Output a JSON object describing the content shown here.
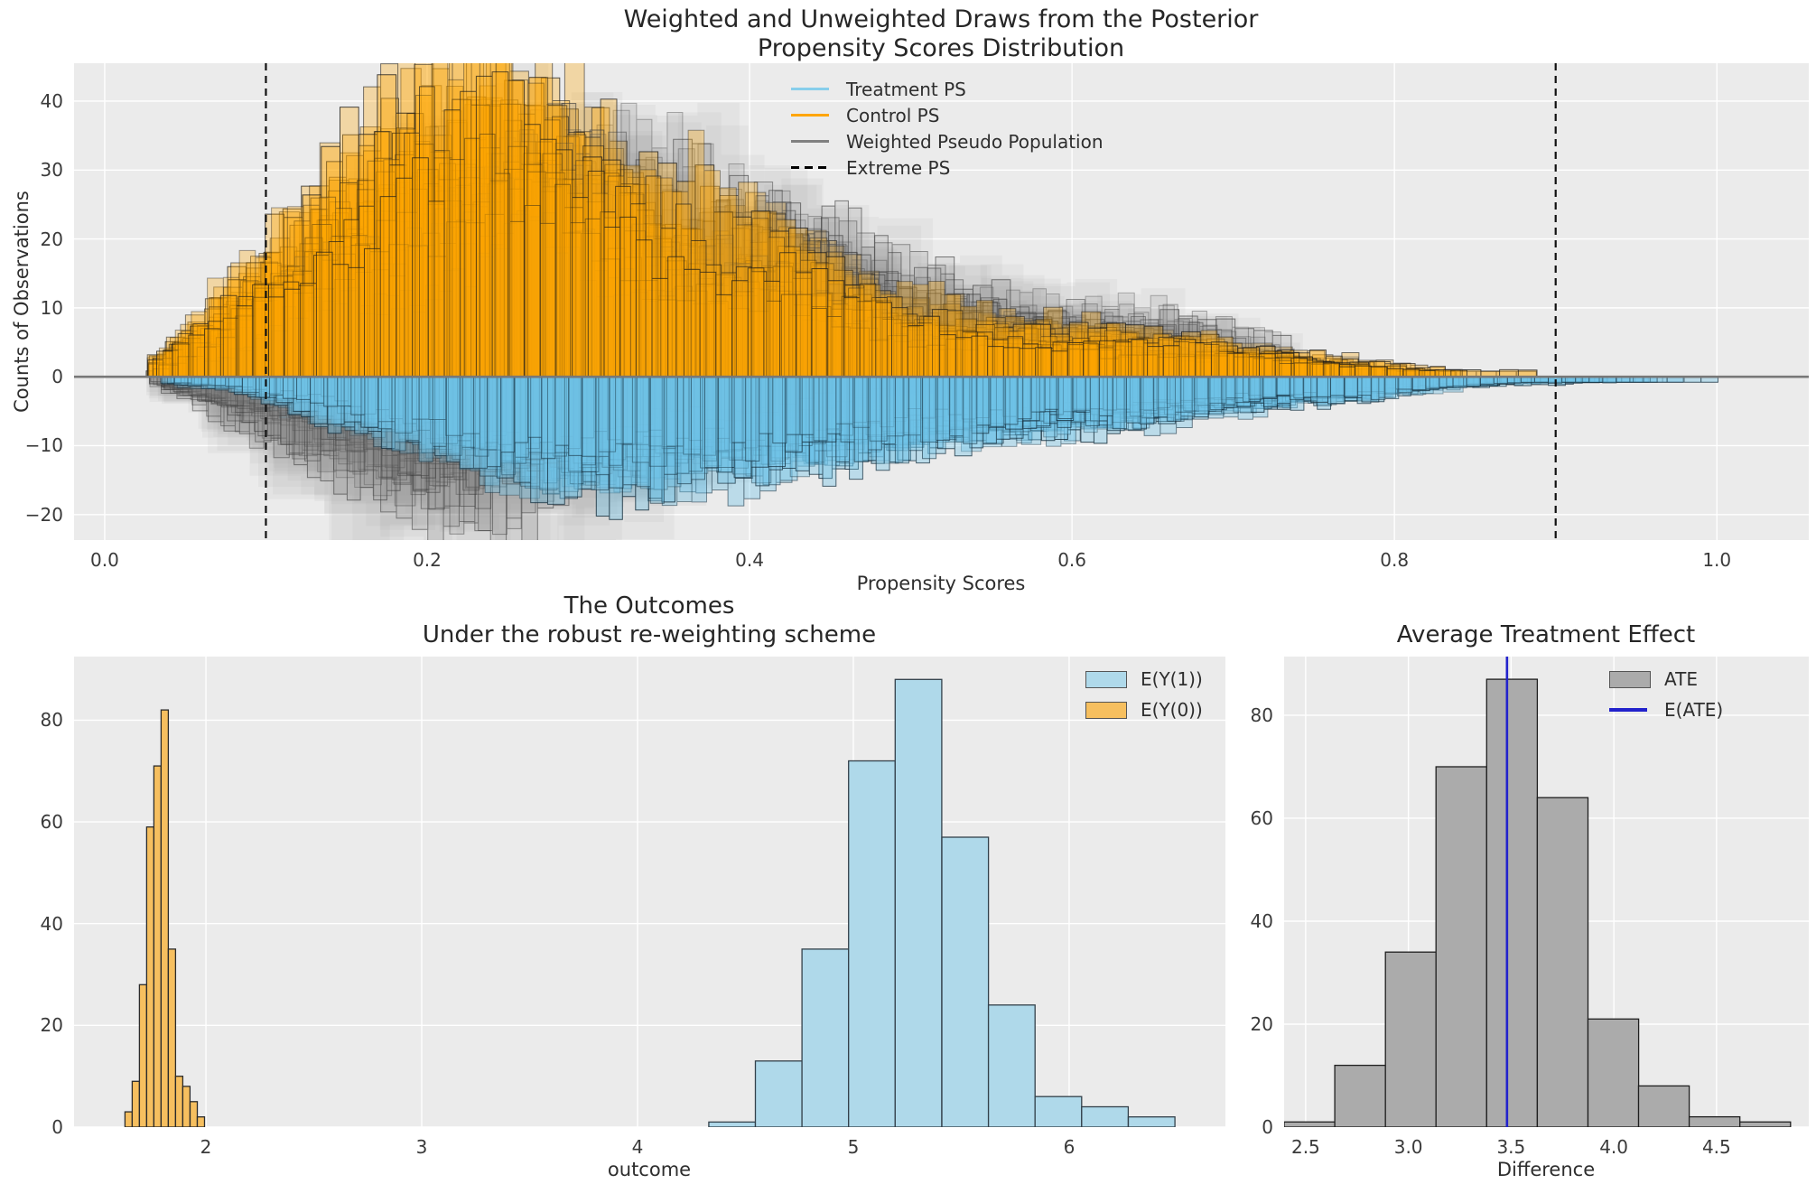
{
  "figure": {
    "background": "#ffffff",
    "axes_background": "#ebebeb",
    "grid_color": "#ffffff",
    "tick_color": "#3a3a3a",
    "title_color": "#262626"
  },
  "chart_data": [
    {
      "id": "propensity-draws",
      "type": "bar",
      "subtype": "overlaid-posterior-histogram-draws-mirrored",
      "title_line1": "Weighted and Unweighted Draws from the Posterior",
      "title_line2": "Propensity Scores Distribution",
      "xlabel": "Propensity Scores",
      "ylabel": "Counts of Observations",
      "xlim": [
        -0.019,
        1.057
      ],
      "ylim": [
        -23.7,
        45.5
      ],
      "xticks": [
        {
          "v": 0.0,
          "label": "0.0"
        },
        {
          "v": 0.2,
          "label": "0.2"
        },
        {
          "v": 0.4,
          "label": "0.4"
        },
        {
          "v": 0.6,
          "label": "0.6"
        },
        {
          "v": 0.8,
          "label": "0.8"
        },
        {
          "v": 1.0,
          "label": "1.0"
        }
      ],
      "yticks": [
        {
          "v": -20,
          "label": "−20"
        },
        {
          "v": -10,
          "label": "−10"
        },
        {
          "v": 0,
          "label": "0"
        },
        {
          "v": 10,
          "label": "10"
        },
        {
          "v": 20,
          "label": "20"
        },
        {
          "v": 30,
          "label": "30"
        },
        {
          "v": 40,
          "label": "40"
        }
      ],
      "extreme_ps_lines": [
        0.1,
        0.9
      ],
      "zero_line_color": "#787878",
      "n_draws_per_series": 20,
      "series": {
        "control": {
          "name": "Control PS",
          "color": "#FFA500",
          "side": "up",
          "x": [
            0.03,
            0.06,
            0.09,
            0.12,
            0.15,
            0.18,
            0.21,
            0.24,
            0.27,
            0.3,
            0.33,
            0.36,
            0.39,
            0.42,
            0.45,
            0.48,
            0.51,
            0.54,
            0.57,
            0.6,
            0.64,
            0.68,
            0.72,
            0.76,
            0.8,
            0.85
          ],
          "h": [
            2,
            8,
            16,
            24,
            30,
            36,
            40,
            42,
            40,
            36,
            31,
            26,
            22,
            20,
            16,
            12,
            10,
            9,
            8,
            7,
            6,
            5,
            4,
            3,
            2,
            1
          ]
        },
        "treatment": {
          "name": "Treatment PS",
          "color": "#87CEEB",
          "side": "down",
          "x": [
            0.04,
            0.08,
            0.11,
            0.14,
            0.17,
            0.2,
            0.23,
            0.26,
            0.29,
            0.32,
            0.35,
            0.38,
            0.41,
            0.44,
            0.47,
            0.5,
            0.54,
            0.58,
            0.62,
            0.66,
            0.7,
            0.74,
            0.78,
            0.82,
            0.86,
            0.9,
            0.95
          ],
          "h": [
            1,
            2,
            4,
            6,
            8,
            10,
            12,
            14,
            15,
            15,
            15,
            14,
            13,
            12,
            11,
            10,
            9,
            8,
            7,
            6,
            5,
            4,
            3,
            2,
            1.5,
            1,
            0.7
          ]
        },
        "weighted_above": {
          "name": "Weighted Pseudo Population",
          "color": "#808080",
          "side": "up",
          "x": [
            0.05,
            0.08,
            0.12,
            0.16,
            0.2,
            0.24,
            0.28,
            0.32,
            0.36,
            0.4,
            0.44,
            0.48,
            0.52,
            0.56,
            0.6,
            0.64,
            0.68,
            0.72,
            0.76
          ],
          "h": [
            2,
            6,
            14,
            20,
            26,
            30,
            31,
            30,
            28,
            24,
            20,
            16,
            13,
            11,
            10,
            9,
            8,
            6,
            3
          ]
        },
        "weighted_below": {
          "name": "Weighted Pseudo Population",
          "color": "#808080",
          "side": "down",
          "x": [
            0.03,
            0.06,
            0.09,
            0.12,
            0.15,
            0.18,
            0.21,
            0.24,
            0.27,
            0.3,
            0.33,
            0.36,
            0.39,
            0.42,
            0.45,
            0.48,
            0.53
          ],
          "h": [
            1,
            4,
            8,
            12,
            15,
            18,
            20,
            20,
            19,
            16,
            14,
            11,
            9,
            7,
            5,
            3,
            2
          ]
        }
      },
      "legend": [
        {
          "label": "Treatment PS",
          "swatch": "line",
          "color": "#87CEEB"
        },
        {
          "label": "Control PS",
          "swatch": "line",
          "color": "#FFA500"
        },
        {
          "label": "Weighted Pseudo Population",
          "swatch": "line",
          "color": "#808080"
        },
        {
          "label": "Extreme PS",
          "swatch": "dashed-line",
          "color": "#000000"
        }
      ]
    },
    {
      "id": "outcomes",
      "type": "bar",
      "title_line1": "The Outcomes",
      "title_line2": "Under the robust re-weighting scheme",
      "xlabel": "outcome",
      "xlim": [
        1.389,
        6.724
      ],
      "ylim": [
        0,
        92.5
      ],
      "xticks": [
        {
          "v": 2,
          "label": "2"
        },
        {
          "v": 3,
          "label": "3"
        },
        {
          "v": 4,
          "label": "4"
        },
        {
          "v": 5,
          "label": "5"
        },
        {
          "v": 6,
          "label": "6"
        }
      ],
      "yticks": [
        {
          "v": 0,
          "label": "0"
        },
        {
          "v": 20,
          "label": "20"
        },
        {
          "v": 40,
          "label": "40"
        },
        {
          "v": 60,
          "label": "60"
        },
        {
          "v": 80,
          "label": "80"
        }
      ],
      "series": [
        {
          "name": "E(Y(1))",
          "fill": "#AFD9EA",
          "edge": "#33414B",
          "bin_start": 4.33,
          "bin_width": 0.216,
          "values": [
            1,
            13,
            35,
            72,
            88,
            57,
            24,
            6,
            4,
            2
          ]
        },
        {
          "name": "E(Y(0))",
          "fill": "#F6BF5F",
          "edge": "#2B2B2B",
          "bin_start": 1.625,
          "bin_width": 0.0335,
          "values": [
            3,
            9,
            28,
            59,
            71,
            82,
            35,
            10,
            8,
            5,
            2
          ]
        }
      ],
      "legend": [
        {
          "label": "E(Y(1))",
          "swatch": "patch",
          "color": "#AFD9EA"
        },
        {
          "label": "E(Y(0))",
          "swatch": "patch",
          "color": "#F6BF5F"
        }
      ]
    },
    {
      "id": "ate",
      "type": "bar",
      "title_line1": "Average Treatment Effect",
      "xlabel": "Difference",
      "xlim": [
        2.395,
        4.949
      ],
      "ylim": [
        0,
        91.4
      ],
      "xticks": [
        {
          "v": 2.5,
          "label": "2.5"
        },
        {
          "v": 3.0,
          "label": "3.0"
        },
        {
          "v": 3.5,
          "label": "3.5"
        },
        {
          "v": 4.0,
          "label": "4.0"
        },
        {
          "v": 4.5,
          "label": "4.5"
        }
      ],
      "yticks": [
        {
          "v": 0,
          "label": "0"
        },
        {
          "v": 20,
          "label": "20"
        },
        {
          "v": 40,
          "label": "40"
        },
        {
          "v": 60,
          "label": "60"
        },
        {
          "v": 80,
          "label": "80"
        }
      ],
      "series": [
        {
          "name": "ATE",
          "fill": "#ABABAB",
          "edge": "#1F1F1F",
          "bin_start": 2.395,
          "bin_width": 0.2465,
          "values": [
            1,
            12,
            34,
            70,
            87,
            64,
            21,
            8,
            2,
            1
          ]
        }
      ],
      "e_ate": 3.48,
      "e_ate_color": "#2222CC",
      "legend": [
        {
          "label": "ATE",
          "swatch": "patch",
          "color": "#ABABAB"
        },
        {
          "label": "E(ATE)",
          "swatch": "line",
          "color": "#2222CC"
        }
      ]
    }
  ]
}
